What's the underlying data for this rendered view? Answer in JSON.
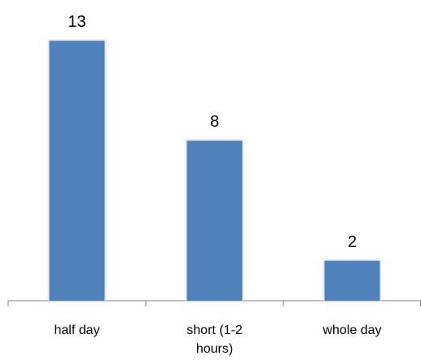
{
  "chart_data": {
    "type": "bar",
    "categories": [
      "half day",
      "short (1-2 hours)",
      "whole day"
    ],
    "category_label_lines": [
      [
        "half day"
      ],
      [
        "short (1-2",
        "hours)"
      ],
      [
        "whole day"
      ]
    ],
    "values": [
      13,
      8,
      2
    ],
    "data_labels": [
      "13",
      "8",
      "2"
    ],
    "title": "",
    "xlabel": "",
    "ylabel": "",
    "ylim": [
      0,
      15
    ],
    "grid": false,
    "legend": "none",
    "bar_color": "#4f81bd",
    "bar_edge_color": "#e3e9f3",
    "axis_color": "#7f7f7f"
  }
}
